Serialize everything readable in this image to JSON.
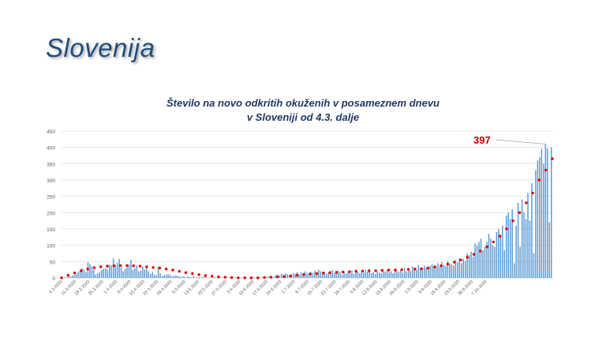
{
  "slide": {
    "title": "Slovenija"
  },
  "chart_data": {
    "type": "bar",
    "title_line1": "Število na novo odkritih okuženih v posameznem dnevu",
    "title_line2": "v Sloveniji od 4.3. dalje",
    "yticks": [
      0,
      50,
      100,
      150,
      200,
      250,
      300,
      350,
      400,
      450
    ],
    "ylim": [
      0,
      450
    ],
    "grid": true,
    "xtick_labels": [
      "4.3.2020",
      "11.3.2020",
      "18.3.2020",
      "25.3.2020",
      "1.4.2020",
      "8.4.2020",
      "15.4.2020",
      "22.4.2020",
      "29.4.2020",
      "6.5.2020",
      "13.5.2020",
      "20.5.2020",
      "27.5.2020",
      "3.6.2020",
      "10.6.2020",
      "17.6.2020",
      "24.6.2020",
      "1.7.2020",
      "8.7.2020",
      "15.7.2020",
      "22.7.2020",
      "29.7.2020",
      "5.8.2020",
      "12.8.2020",
      "19.8.2020",
      "26.8.2020",
      "2.9.2020",
      "9.9.2020",
      "16.9.2020",
      "23.9.2020",
      "30.9.2020",
      "7.10.2020"
    ],
    "callout": {
      "label": "397"
    },
    "colors": {
      "bars": "#5b9bd5",
      "trend": "#e00000",
      "callout": "#c00000",
      "title": "#1f3864"
    },
    "series": [
      {
        "type": "bar",
        "values": [
          0,
          2,
          1,
          5,
          4,
          7,
          9,
          12,
          18,
          21,
          30,
          25,
          18,
          48,
          42,
          35,
          25,
          10,
          14,
          18,
          24,
          28,
          30,
          25,
          40,
          38,
          60,
          40,
          45,
          58,
          33,
          20,
          28,
          35,
          40,
          55,
          25,
          30,
          38,
          20,
          22,
          35,
          25,
          30,
          20,
          12,
          18,
          10,
          8,
          35,
          14,
          6,
          8,
          10,
          12,
          9,
          5,
          7,
          8,
          6,
          4,
          3,
          5,
          2,
          4,
          3,
          2,
          5,
          1,
          2,
          2,
          1,
          3,
          2,
          1,
          1,
          0,
          1,
          2,
          1,
          0,
          1,
          0,
          2,
          1,
          1,
          0,
          1,
          2,
          0,
          1,
          1,
          0,
          2,
          1,
          0,
          1,
          1,
          2,
          0,
          3,
          1,
          2,
          3,
          2,
          5,
          4,
          6,
          3,
          8,
          10,
          7,
          12,
          9,
          14,
          11,
          8,
          10,
          15,
          12,
          18,
          10,
          16,
          13,
          20,
          14,
          12,
          18,
          15,
          22,
          17,
          25,
          20,
          14,
          18,
          12,
          16,
          20,
          24,
          15,
          18,
          22,
          17,
          10,
          20,
          13,
          18,
          15,
          22,
          12,
          25,
          18,
          14,
          20,
          16,
          24,
          19,
          22,
          15,
          18,
          12,
          20,
          16,
          14,
          22,
          19,
          25,
          17,
          20,
          14,
          28,
          22,
          18,
          24,
          16,
          30,
          20,
          26,
          22,
          35,
          28,
          24,
          40,
          30,
          26,
          38,
          32,
          28,
          36,
          42,
          30,
          38,
          45,
          34,
          48,
          40,
          36,
          52,
          45,
          42,
          38,
          55,
          48,
          60,
          45,
          58,
          52,
          75,
          70,
          80,
          65,
          105,
          100,
          110,
          120,
          85,
          95,
          110,
          135,
          120,
          100,
          95,
          140,
          150,
          130,
          160,
          85,
          190,
          200,
          180,
          210,
          45,
          160,
          230,
          95,
          240,
          200,
          180,
          260,
          175,
          290,
          75,
          330,
          360,
          370,
          395,
          350,
          410,
          397,
          170,
          400
        ]
      },
      {
        "type": "trend",
        "values": [
          0,
          8,
          15,
          22,
          27,
          31,
          34,
          36,
          37,
          38,
          38,
          37,
          36,
          34,
          32,
          30,
          27,
          24,
          20,
          16,
          13,
          10,
          7,
          5,
          3,
          2,
          1,
          0,
          0,
          0,
          0,
          1,
          2,
          3,
          4,
          6,
          8,
          10,
          12,
          13,
          15,
          16,
          17,
          18,
          19,
          20,
          21,
          22,
          22,
          23,
          24,
          24,
          25,
          26,
          27,
          28,
          30,
          33,
          37,
          42,
          48,
          55,
          63,
          72,
          82,
          95,
          110,
          128,
          150,
          175,
          200,
          230,
          260,
          300,
          330,
          365
        ]
      }
    ]
  }
}
